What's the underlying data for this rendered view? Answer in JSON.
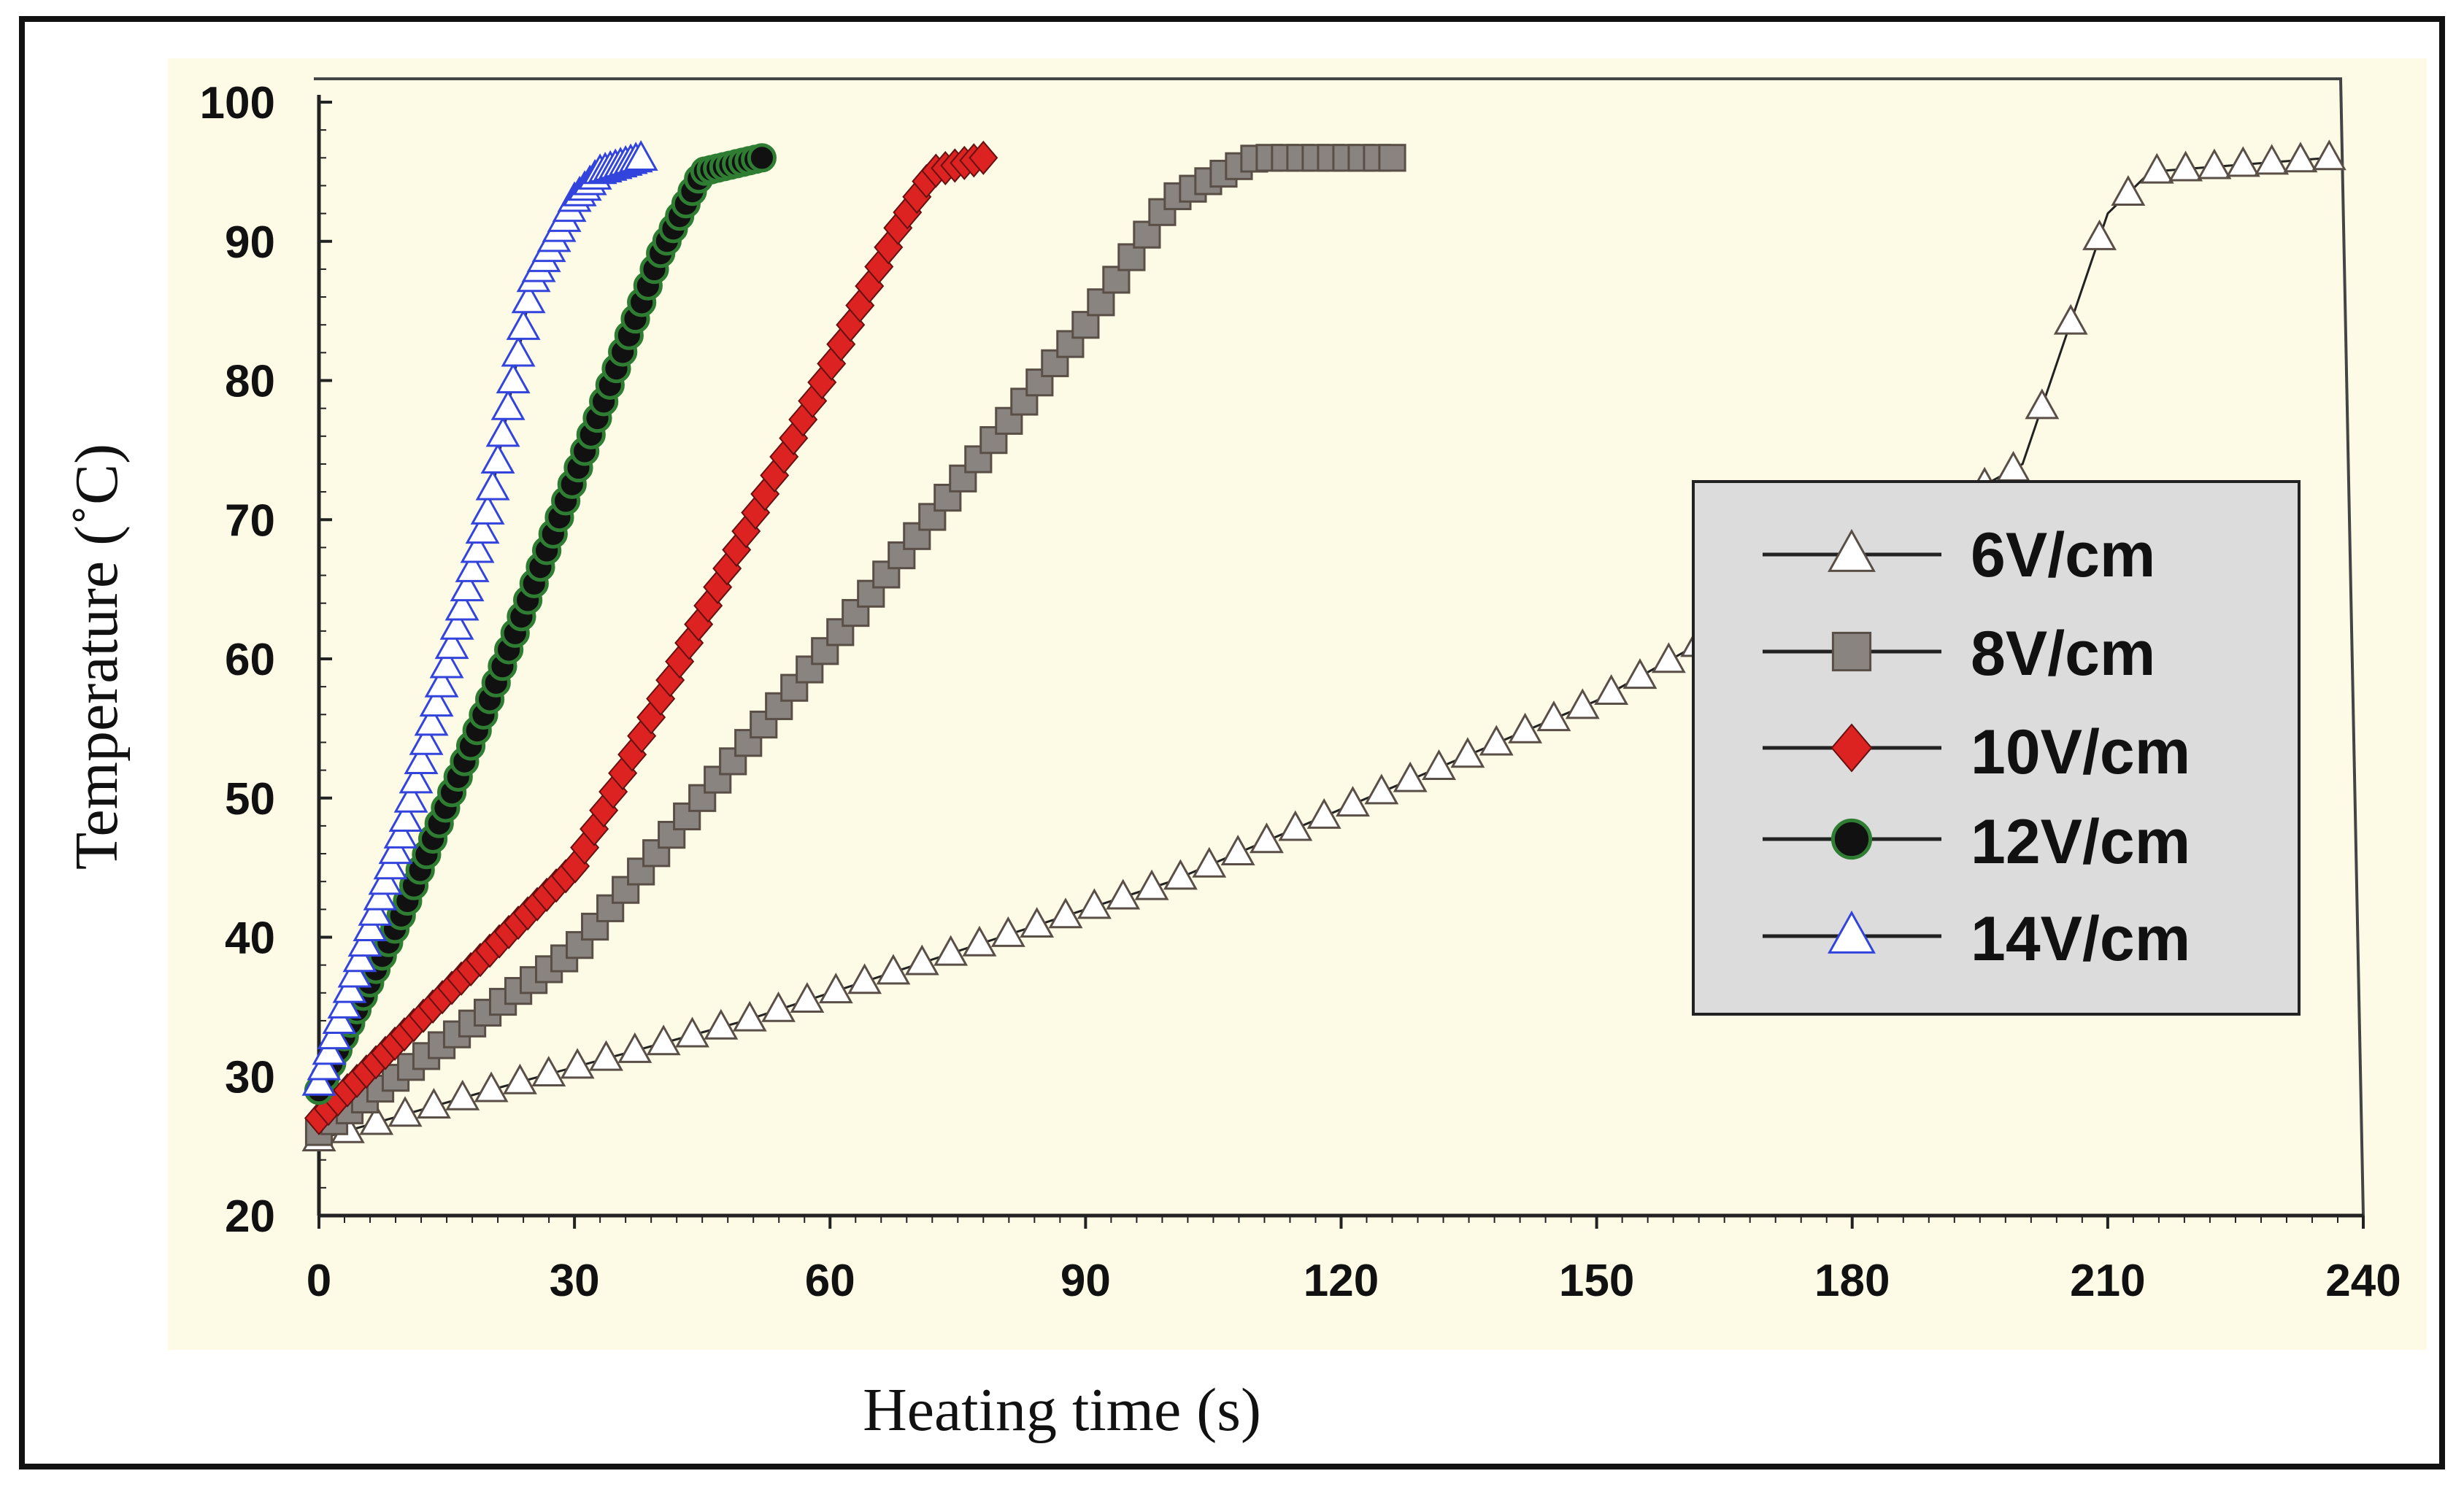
{
  "chart_data": {
    "type": "line",
    "title": "",
    "xlabel": "Heating time (s)",
    "ylabel": "Temperature (˚C)",
    "xlim": [
      0,
      240
    ],
    "ylim": [
      20,
      100
    ],
    "xticks": [
      0,
      30,
      60,
      90,
      120,
      150,
      180,
      210,
      240
    ],
    "yticks": [
      20,
      30,
      40,
      50,
      60,
      70,
      80,
      90,
      100
    ],
    "grid": false,
    "legend_position": "right",
    "series": [
      {
        "name": "6V/cm",
        "marker": "triangle-open",
        "color": "#5a4f47",
        "x": [
          0,
          20,
          50,
          100,
          150,
          200,
          210,
          215,
          236
        ],
        "y": [
          25.5,
          29,
          34,
          44,
          57,
          74,
          92,
          95,
          96
        ]
      },
      {
        "name": "8V/cm",
        "marker": "square",
        "color": "#5a4f47",
        "x": [
          0,
          30,
          60,
          90,
          100,
          110,
          126
        ],
        "y": [
          26,
          39,
          61,
          84,
          93,
          96,
          96
        ]
      },
      {
        "name": "10V/cm",
        "marker": "diamond",
        "color": "#dd2222",
        "x": [
          0,
          30,
          60,
          68,
          72,
          78
        ],
        "y": [
          27,
          45,
          81,
          91,
          95,
          96
        ]
      },
      {
        "name": "12V/cm",
        "marker": "circle",
        "color": "#2e7d32",
        "x": [
          0,
          10,
          20,
          30,
          40,
          45,
          52
        ],
        "y": [
          29,
          42,
          57,
          73,
          89,
          95,
          96
        ]
      },
      {
        "name": "14V/cm",
        "marker": "triangle-filled",
        "color": "#3344dd",
        "x": [
          0,
          10,
          20,
          25,
          30,
          33,
          38
        ],
        "y": [
          29.5,
          48,
          71,
          87,
          93,
          95,
          96
        ]
      }
    ]
  },
  "legend": {
    "items": [
      {
        "label": "6V/cm",
        "marker": "triangle-open"
      },
      {
        "label": "8V/cm",
        "marker": "square"
      },
      {
        "label": "10V/cm",
        "marker": "diamond"
      },
      {
        "label": "12V/cm",
        "marker": "circle"
      },
      {
        "label": "14V/cm",
        "marker": "triangle-filled"
      }
    ]
  },
  "colors": {
    "plot_background": "#fdfbe6",
    "legend_background": "#dcdcdc",
    "axis": "#222222"
  }
}
